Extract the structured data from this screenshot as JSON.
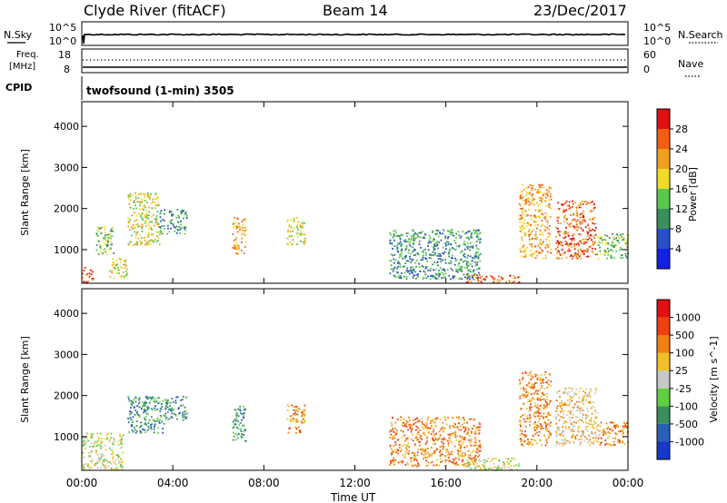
{
  "header": {
    "station": "Clyde River (fitACF)",
    "beam": "Beam 14",
    "date": "23/Dec/2017"
  },
  "nsky_panel": {
    "left_label": "N.Sky",
    "left_ticks": [
      "10^5",
      "10^0"
    ],
    "right_label": "N.Search",
    "right_ticks": [
      "10^5",
      "10^0"
    ]
  },
  "freq_panel": {
    "left_label_1": "Freq.",
    "left_label_2": "[MHz]",
    "left_ticks": [
      "18",
      "8"
    ],
    "right_label": "Nave",
    "right_ticks": [
      "60",
      "0"
    ]
  },
  "cpid": {
    "label": "CPID",
    "text": "twofsound (1-min) 3505"
  },
  "chart_data": [
    {
      "type": "heatmap",
      "name": "power",
      "ylabel": "Slant Range [km]",
      "yticks": [
        1000,
        2000,
        3000,
        4000
      ],
      "ylim": [
        180,
        4600
      ],
      "xlim_hours": [
        0,
        24
      ],
      "colorbar": {
        "label": "Power [dB]",
        "ticks": [
          "4",
          "8",
          "12",
          "16",
          "20",
          "24",
          "28"
        ],
        "colors": [
          "#1420e6",
          "#2850c8",
          "#3a8f5a",
          "#58c84e",
          "#f0dc28",
          "#f0a020",
          "#f06010",
          "#e01010"
        ]
      },
      "echo_regions": [
        {
          "t0": 0.0,
          "t1": 0.5,
          "r0": 200,
          "r1": 600,
          "level": 6
        },
        {
          "t0": 0.6,
          "t1": 1.4,
          "r0": 900,
          "r1": 1600,
          "level": 3
        },
        {
          "t0": 1.2,
          "t1": 2.0,
          "r0": 300,
          "r1": 800,
          "level": 4
        },
        {
          "t0": 2.0,
          "t1": 3.4,
          "r0": 1100,
          "r1": 2400,
          "level": 4
        },
        {
          "t0": 3.4,
          "t1": 4.6,
          "r0": 1400,
          "r1": 2000,
          "level": 2
        },
        {
          "t0": 6.6,
          "t1": 7.2,
          "r0": 900,
          "r1": 1800,
          "level": 5
        },
        {
          "t0": 9.0,
          "t1": 9.8,
          "r0": 1100,
          "r1": 1800,
          "level": 4
        },
        {
          "t0": 13.5,
          "t1": 17.5,
          "r0": 300,
          "r1": 1500,
          "level": 2
        },
        {
          "t0": 16.8,
          "t1": 19.2,
          "r0": 200,
          "r1": 400,
          "level": 6
        },
        {
          "t0": 19.2,
          "t1": 20.6,
          "r0": 800,
          "r1": 2600,
          "level": 5
        },
        {
          "t0": 20.8,
          "t1": 22.6,
          "r0": 800,
          "r1": 2200,
          "level": 6
        },
        {
          "t0": 22.6,
          "t1": 24.0,
          "r0": 800,
          "r1": 1400,
          "level": 3
        }
      ]
    },
    {
      "type": "heatmap",
      "name": "velocity",
      "ylabel": "Slant Range [km]",
      "yticks": [
        1000,
        2000,
        3000,
        4000
      ],
      "ylim": [
        180,
        4600
      ],
      "xlim_hours": [
        0,
        24
      ],
      "colorbar": {
        "label": "Velocity [m s^-1]",
        "ticks": [
          "1000",
          "500",
          "100",
          "25",
          "-25",
          "-100",
          "-500",
          "-1000"
        ],
        "colors": [
          "#1838c8",
          "#2860b8",
          "#3a8f5a",
          "#60d040",
          "#c8c8c8",
          "#f0c028",
          "#f08010",
          "#f04010",
          "#e01010"
        ]
      },
      "echo_regions": [
        {
          "t0": 0.0,
          "t1": 1.8,
          "r0": 200,
          "r1": 1100,
          "level": 4
        },
        {
          "t0": 2.0,
          "t1": 3.6,
          "r0": 1100,
          "r1": 2000,
          "level": 2
        },
        {
          "t0": 3.6,
          "t1": 4.6,
          "r0": 1400,
          "r1": 2000,
          "level": 2
        },
        {
          "t0": 6.6,
          "t1": 7.2,
          "r0": 900,
          "r1": 1800,
          "level": 2
        },
        {
          "t0": 9.0,
          "t1": 9.8,
          "r0": 1100,
          "r1": 1800,
          "level": 6
        },
        {
          "t0": 13.5,
          "t1": 17.5,
          "r0": 300,
          "r1": 1500,
          "level": 6
        },
        {
          "t0": 16.8,
          "t1": 19.2,
          "r0": 200,
          "r1": 500,
          "level": 4
        },
        {
          "t0": 19.2,
          "t1": 20.6,
          "r0": 800,
          "r1": 2600,
          "level": 6
        },
        {
          "t0": 20.8,
          "t1": 22.6,
          "r0": 800,
          "r1": 2200,
          "level": 5
        },
        {
          "t0": 22.6,
          "t1": 24.0,
          "r0": 800,
          "r1": 1400,
          "level": 6
        }
      ]
    }
  ],
  "x_axis": {
    "label": "Time UT",
    "ticks": [
      "00:00",
      "04:00",
      "08:00",
      "12:00",
      "16:00",
      "20:00",
      "00:00"
    ]
  }
}
